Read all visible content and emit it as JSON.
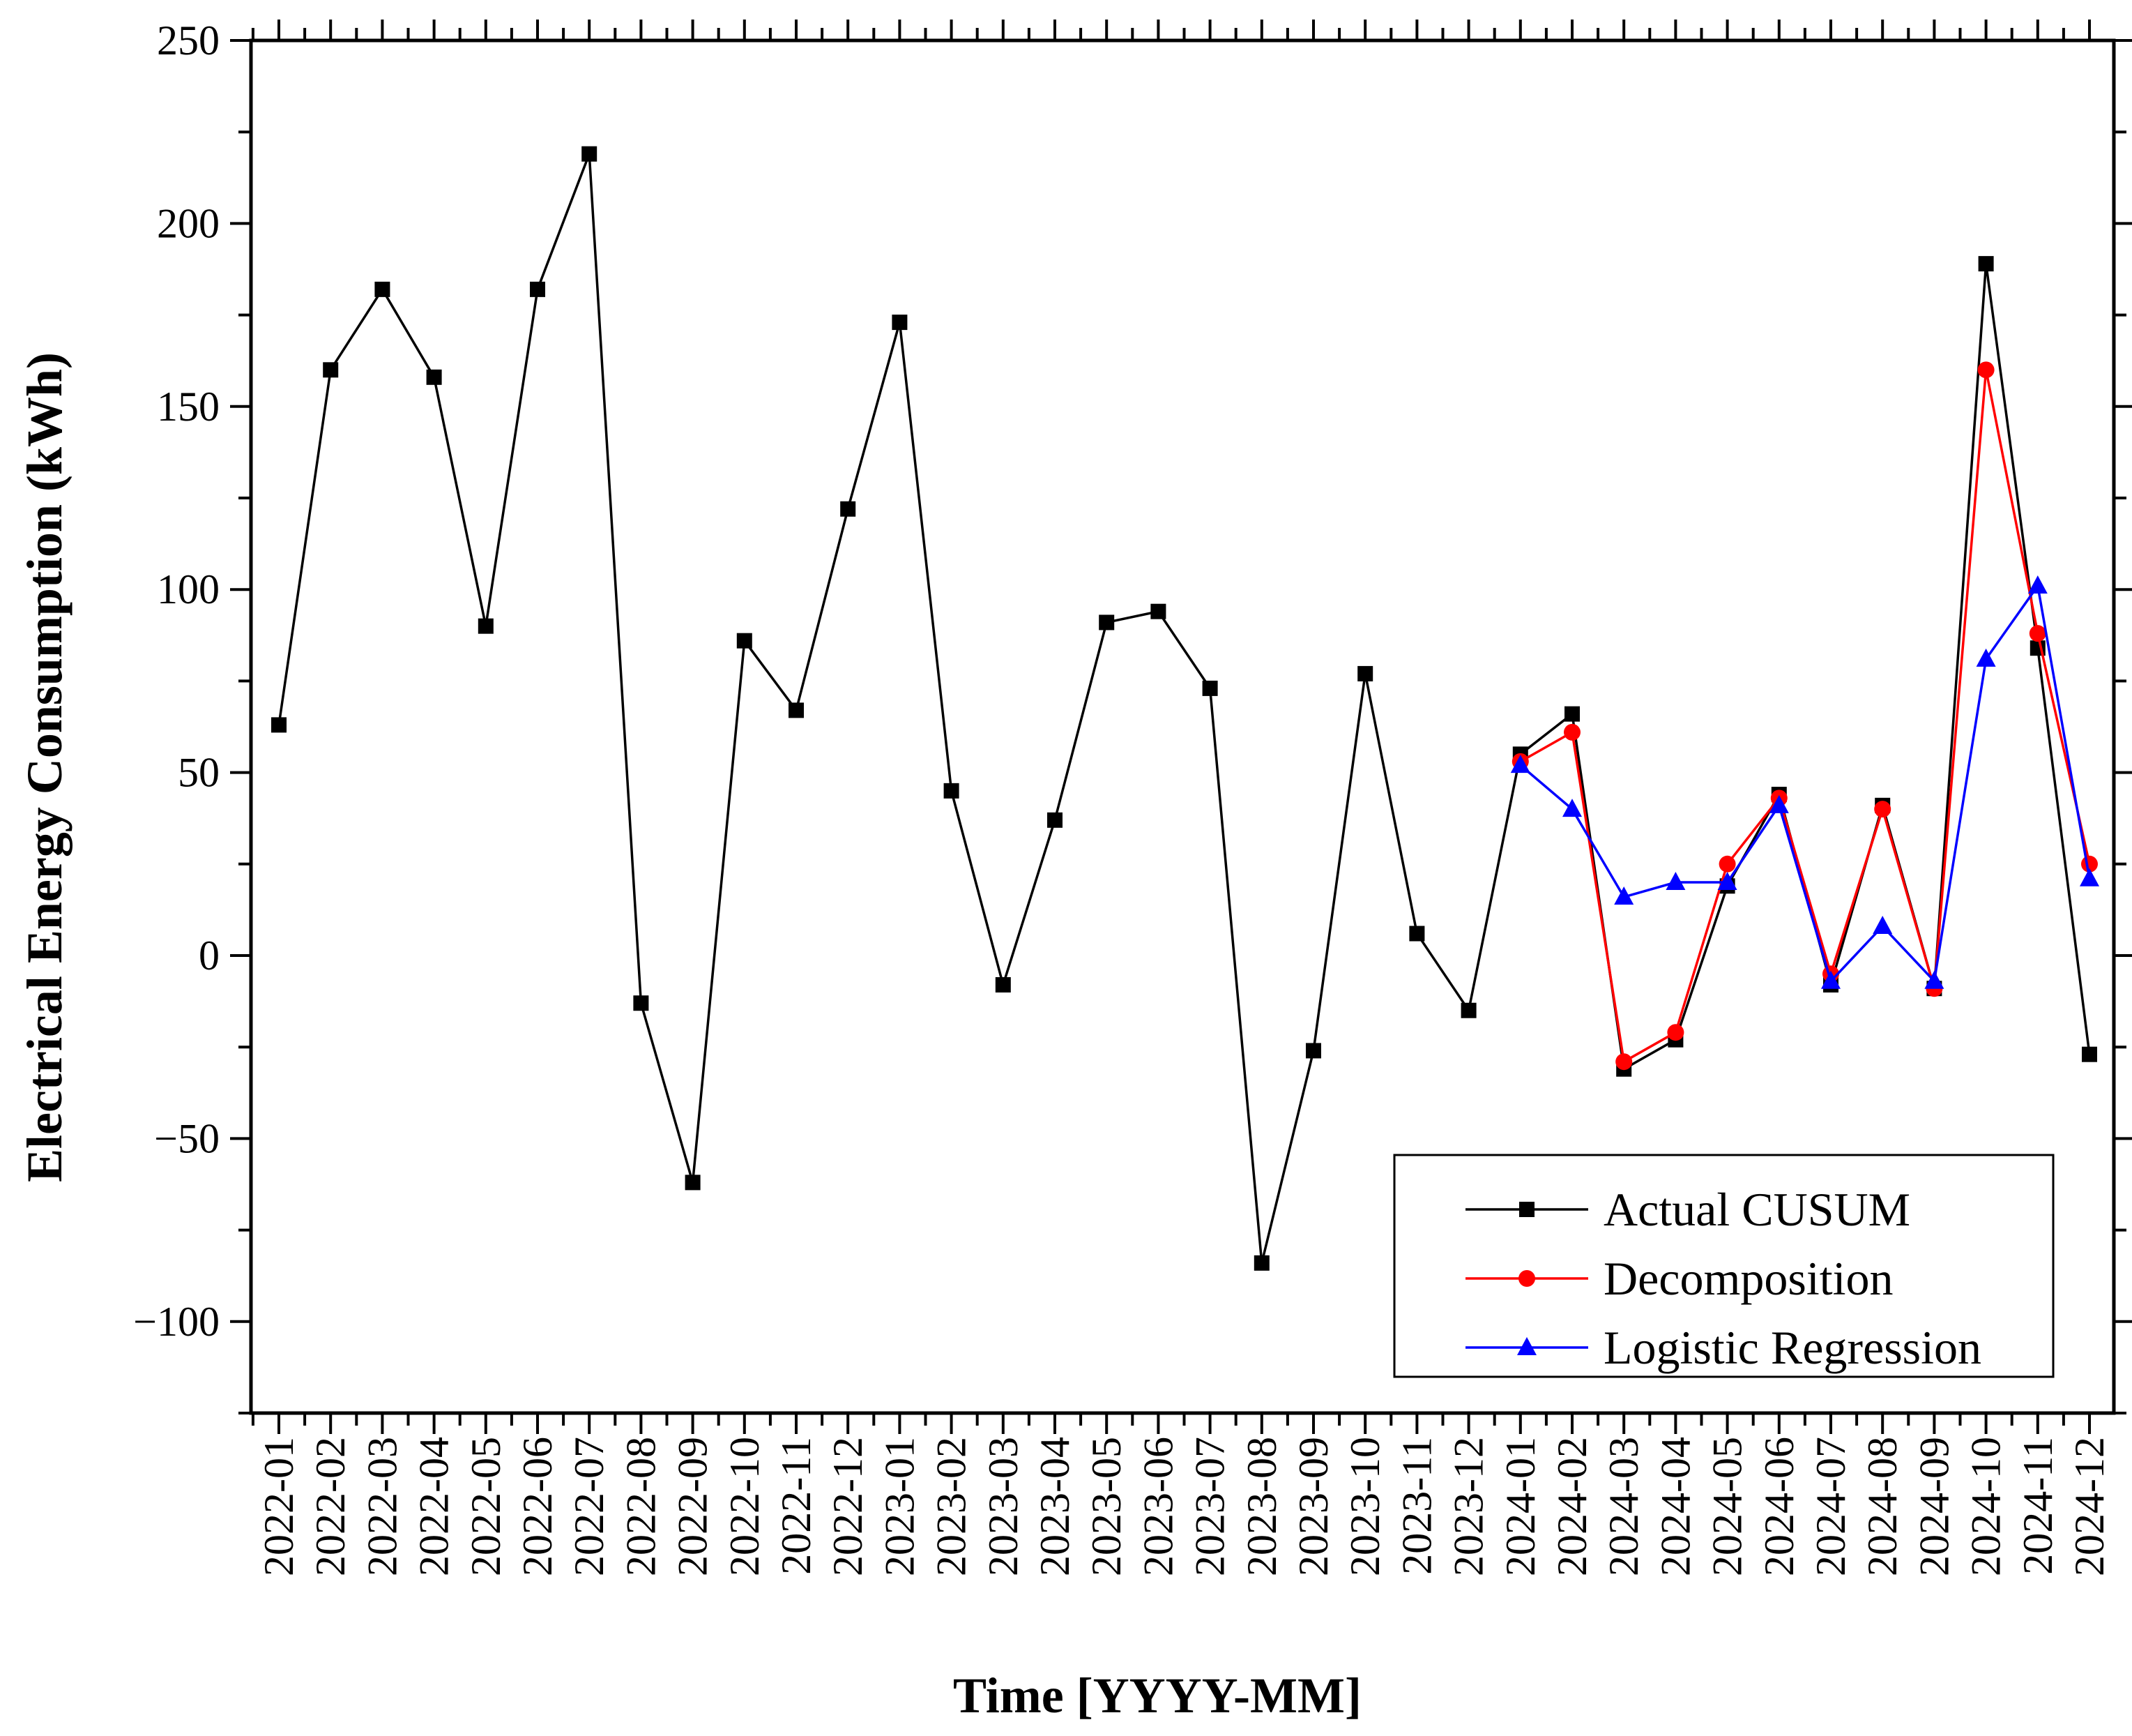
{
  "chart_data": {
    "type": "line",
    "xlabel": "Time [YYYY-MM]",
    "ylabel": "Electrical Energy Consumption (kWh)",
    "ylim": [
      -125,
      250
    ],
    "yticks": [
      -100,
      -50,
      0,
      50,
      100,
      150,
      200,
      250
    ],
    "ytick_labels": [
      "−100",
      "−50",
      "0",
      "50",
      "100",
      "150",
      "200",
      "250"
    ],
    "categories": [
      "2022-01",
      "2022-02",
      "2022-03",
      "2022-04",
      "2022-05",
      "2022-06",
      "2022-07",
      "2022-08",
      "2022-09",
      "2022-10",
      "2022-11",
      "2022-12",
      "2023-01",
      "2023-02",
      "2023-03",
      "2023-04",
      "2023-05",
      "2023-06",
      "2023-07",
      "2023-08",
      "2023-09",
      "2023-10",
      "2023-11",
      "2023-12",
      "2024-01",
      "2024-02",
      "2024-03",
      "2024-04",
      "2024-05",
      "2024-06",
      "2024-07",
      "2024-08",
      "2024-09",
      "2024-10",
      "2024-11",
      "2024-12"
    ],
    "grid": false,
    "legend_position": "bottom-right",
    "series": [
      {
        "name": "Actual CUSUM",
        "color": "#000000",
        "marker": "square",
        "values": [
          63,
          160,
          182,
          158,
          90,
          182,
          219,
          -13,
          -62,
          86,
          67,
          122,
          173,
          45,
          -8,
          37,
          91,
          94,
          73,
          -84,
          -26,
          77,
          6,
          -15,
          55,
          66,
          -31,
          -23,
          19,
          44,
          -8,
          41,
          -9,
          189,
          84,
          -27
        ]
      },
      {
        "name": "Decomposition",
        "color": "#ff0000",
        "marker": "circle",
        "values": [
          null,
          null,
          null,
          null,
          null,
          null,
          null,
          null,
          null,
          null,
          null,
          null,
          null,
          null,
          null,
          null,
          null,
          null,
          null,
          null,
          null,
          null,
          null,
          null,
          53,
          61,
          -29,
          -21,
          25,
          43,
          -5,
          40,
          -9,
          160,
          88,
          25
        ]
      },
      {
        "name": "Logistic Regression",
        "color": "#0000ff",
        "marker": "triangle",
        "values": [
          null,
          null,
          null,
          null,
          null,
          null,
          null,
          null,
          null,
          null,
          null,
          null,
          null,
          null,
          null,
          null,
          null,
          null,
          null,
          null,
          null,
          null,
          null,
          null,
          52,
          40,
          16,
          20,
          20,
          41,
          -7,
          8,
          -7,
          81,
          101,
          21
        ]
      }
    ]
  }
}
